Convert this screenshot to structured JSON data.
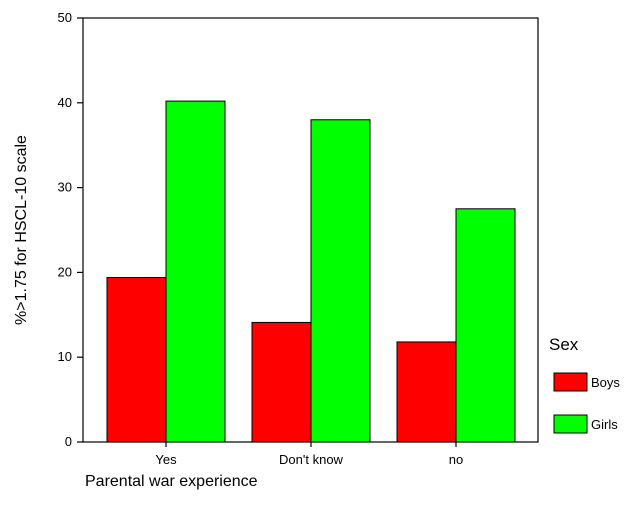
{
  "chart_data": {
    "type": "bar",
    "title": "",
    "xlabel": "Parental war experience",
    "ylabel": "%>1.75 for HSCL-10 scale",
    "ylim": [
      0,
      50
    ],
    "yticks": [
      0,
      10,
      20,
      30,
      40,
      50
    ],
    "categories": [
      "Yes",
      "Don't know",
      "no"
    ],
    "legend_title": "Sex",
    "legend_position": "right",
    "grid": false,
    "series": [
      {
        "name": "Boys",
        "color": "#ff0000",
        "values": [
          19.4,
          14.1,
          11.8
        ]
      },
      {
        "name": "Girls",
        "color": "#00ff00",
        "values": [
          40.2,
          38.0,
          27.5
        ]
      }
    ]
  }
}
